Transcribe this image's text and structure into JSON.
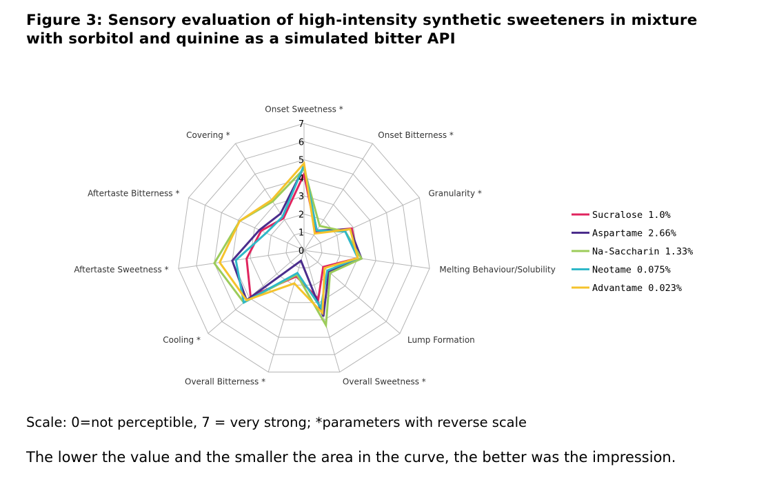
{
  "figure": {
    "title_line1": "Figure 3: Sensory evaluation of high-intensity synthetic sweeteners in mixture",
    "title_line2": "with sorbitol and quinine as a simulated bitter API",
    "scale_note": "Scale: 0=not perceptible, 7 = very strong; *parameters with reverse scale",
    "impression_note": "The lower the value and the smaller the area in the curve, the better was the impression."
  },
  "chart_data": {
    "type": "radar",
    "title": "",
    "axes": [
      "Onset Sweetness *",
      "Onset Bitterness *",
      "Granularity *",
      "Melting Behaviour/Solubility",
      "Lump Formation",
      "Overall Sweetness *",
      "Overall Bitterness *",
      "Cooling *",
      "Aftertaste Sweetness *",
      "Aftertaste Bitterness *",
      "Covering *"
    ],
    "rlim": [
      0,
      7
    ],
    "ticks": [
      "0",
      "1",
      "2",
      "3",
      "4",
      "5",
      "6",
      "7"
    ],
    "grid": true,
    "legend_position": "right",
    "series": [
      {
        "name": "Sucralose 1.0%",
        "color": "#e0245e",
        "values": [
          4.2,
          1.2,
          2.9,
          3.0,
          1.4,
          2.8,
          1.5,
          3.9,
          3.2,
          2.6,
          2.1
        ]
      },
      {
        "name": "Aspartame 2.66%",
        "color": "#4b2d8c",
        "values": [
          4.6,
          1.3,
          2.8,
          3.2,
          1.8,
          3.8,
          0.6,
          4.2,
          4.0,
          2.7,
          2.4
        ]
      },
      {
        "name": "Na-Saccharin 1.33%",
        "color": "#9ccc5a",
        "values": [
          4.5,
          1.6,
          2.5,
          3.2,
          1.9,
          4.3,
          1.4,
          4.4,
          5.0,
          3.9,
          3.2
        ]
      },
      {
        "name": "Neotame 0.075%",
        "color": "#2fb8c8",
        "values": [
          4.7,
          1.3,
          2.5,
          3.0,
          1.7,
          3.3,
          1.3,
          4.4,
          3.8,
          2.3,
          2.2
        ]
      },
      {
        "name": "Advantame 0.023%",
        "color": "#f5c32c",
        "values": [
          4.8,
          1.1,
          2.8,
          3.0,
          1.5,
          3.6,
          1.9,
          4.2,
          4.7,
          3.9,
          3.3
        ]
      }
    ]
  }
}
